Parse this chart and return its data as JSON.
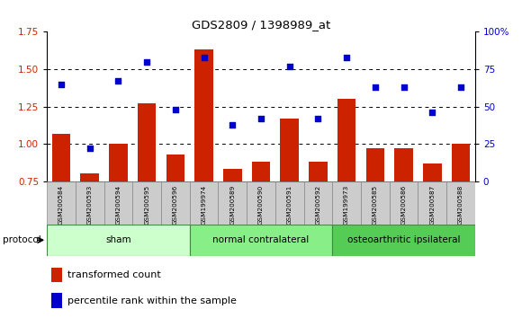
{
  "title": "GDS2809 / 1398989_at",
  "samples": [
    "GSM200584",
    "GSM200593",
    "GSM200594",
    "GSM200595",
    "GSM200596",
    "GSM199974",
    "GSM200589",
    "GSM200590",
    "GSM200591",
    "GSM200592",
    "GSM199973",
    "GSM200585",
    "GSM200586",
    "GSM200587",
    "GSM200588"
  ],
  "bar_values": [
    1.07,
    0.8,
    1.0,
    1.27,
    0.93,
    1.63,
    0.83,
    0.88,
    1.17,
    0.88,
    1.3,
    0.97,
    0.97,
    0.87,
    1.0
  ],
  "scatter_values": [
    65,
    22,
    67,
    80,
    48,
    83,
    38,
    42,
    77,
    42,
    83,
    63,
    63,
    46,
    63
  ],
  "bar_color": "#cc2200",
  "scatter_color": "#0000cc",
  "ylim_left": [
    0.75,
    1.75
  ],
  "ylim_right": [
    0,
    100
  ],
  "yticks_left": [
    0.75,
    1.0,
    1.25,
    1.5,
    1.75
  ],
  "yticks_right": [
    0,
    25,
    50,
    75,
    100
  ],
  "groups": [
    {
      "label": "sham",
      "start": 0,
      "end": 5,
      "color": "#ccffcc"
    },
    {
      "label": "normal contralateral",
      "start": 5,
      "end": 10,
      "color": "#88ee88"
    },
    {
      "label": "osteoarthritic ipsilateral",
      "start": 10,
      "end": 15,
      "color": "#55cc55"
    }
  ],
  "legend_bar_label": "transformed count",
  "legend_scatter_label": "percentile rank within the sample",
  "protocol_label": "protocol",
  "bar_color_hex": "#cc2200",
  "scatter_color_hex": "#0000cc",
  "tick_label_color_left": "#cc2200",
  "tick_label_color_right": "#0000cc"
}
